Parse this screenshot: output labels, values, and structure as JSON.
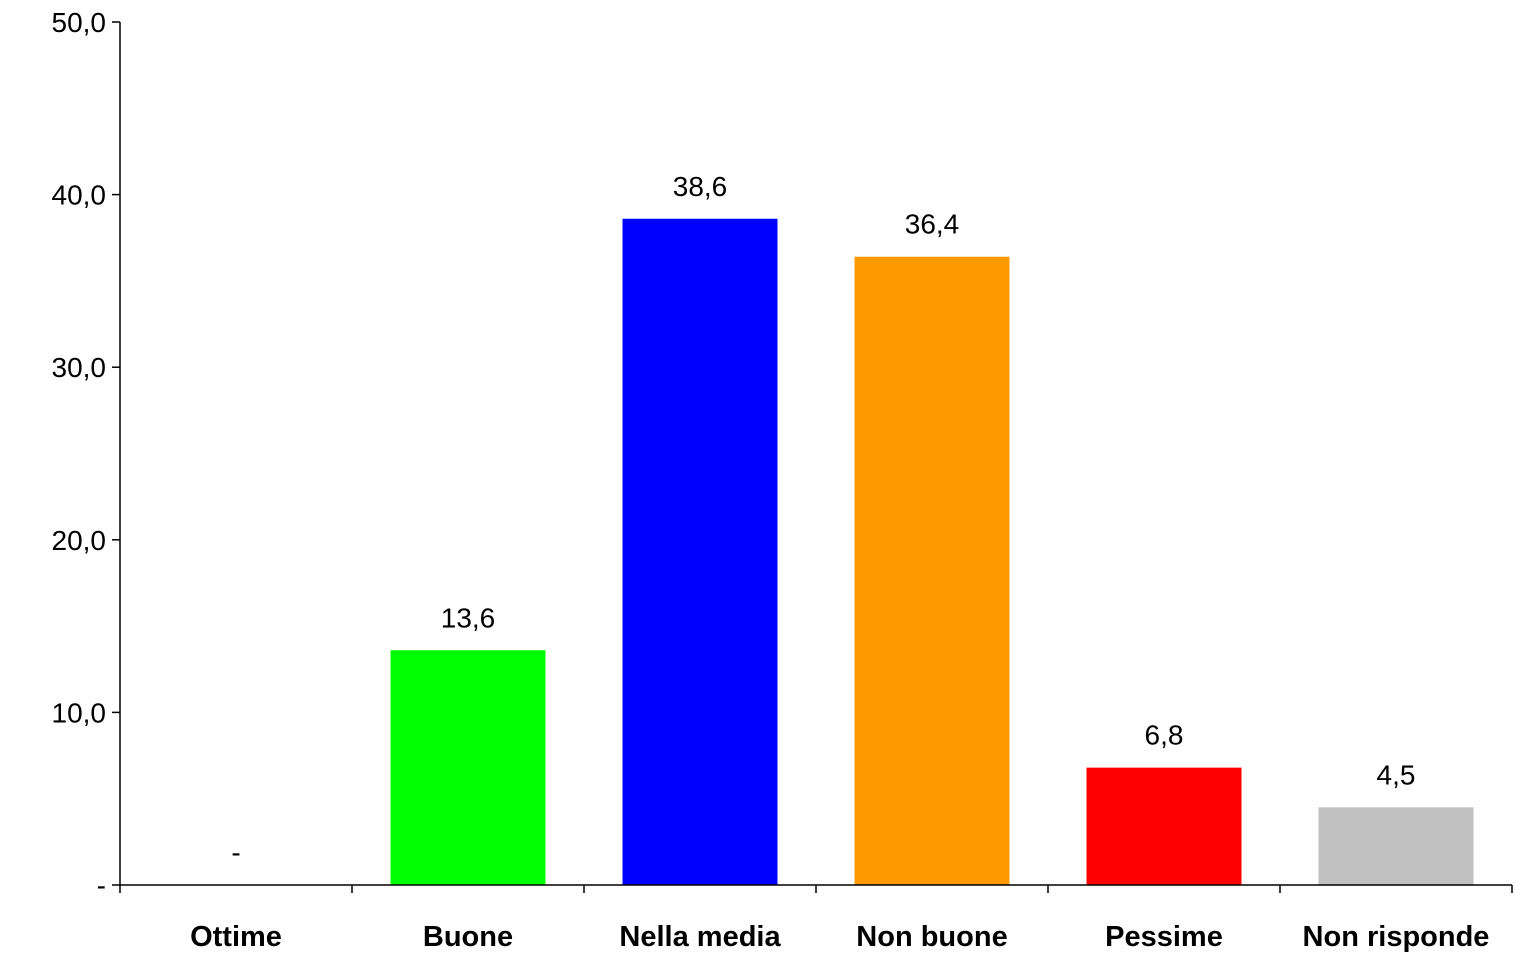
{
  "chart_data": {
    "type": "bar",
    "title": "",
    "xlabel": "",
    "ylabel": "",
    "categories": [
      "Ottime",
      "Buone",
      "Nella media",
      "Non buone",
      "Pessime",
      "Non risponde"
    ],
    "values": [
      0,
      13.6,
      38.6,
      36.4,
      6.8,
      4.5
    ],
    "value_labels": [
      "-",
      "13,6",
      "38,6",
      "36,4",
      "6,8",
      "4,5"
    ],
    "colors": [
      "#00ff00",
      "#00ff00",
      "#0000ff",
      "#ff9900",
      "#ff0000",
      "#c0c0c0"
    ],
    "ylim": [
      0,
      50
    ],
    "yticks": [
      0,
      10,
      20,
      30,
      40,
      50
    ],
    "ytick_labels": [
      "-",
      "10,0",
      "20,0",
      "30,0",
      "40,0",
      "50,0"
    ],
    "grid": false,
    "legend": "none"
  }
}
